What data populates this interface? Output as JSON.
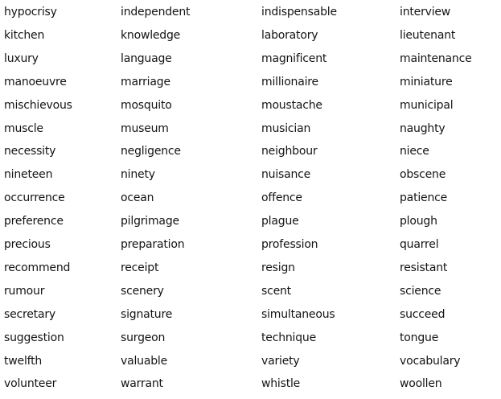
{
  "word_list": {
    "rows": [
      [
        "hypocrisy",
        "independent",
        "indispensable",
        "interview"
      ],
      [
        "kitchen",
        "knowledge",
        "laboratory",
        "lieutenant"
      ],
      [
        "luxury",
        "language",
        "magnificent",
        "maintenance"
      ],
      [
        "manoeuvre",
        "marriage",
        "millionaire",
        "miniature"
      ],
      [
        "mischievous",
        "mosquito",
        "moustache",
        "municipal"
      ],
      [
        "muscle",
        "museum",
        "musician",
        "naughty"
      ],
      [
        "necessity",
        "negligence",
        "neighbour",
        "niece"
      ],
      [
        "nineteen",
        "ninety",
        "nuisance",
        "obscene"
      ],
      [
        "occurrence",
        "ocean",
        "offence",
        "patience"
      ],
      [
        "preference",
        "pilgrimage",
        "plague",
        "plough"
      ],
      [
        "precious",
        "preparation",
        "profession",
        "quarrel"
      ],
      [
        "recommend",
        "receipt",
        "resign",
        "resistant"
      ],
      [
        "rumour",
        "scenery",
        "scent",
        "science"
      ],
      [
        "secretary",
        "signature",
        "simultaneous",
        "succeed"
      ],
      [
        "suggestion",
        "surgeon",
        "technique",
        "tongue"
      ],
      [
        "twelfth",
        "valuable",
        "variety",
        "vocabulary"
      ],
      [
        "volunteer",
        "warrant",
        "whistle",
        "woollen"
      ]
    ]
  }
}
